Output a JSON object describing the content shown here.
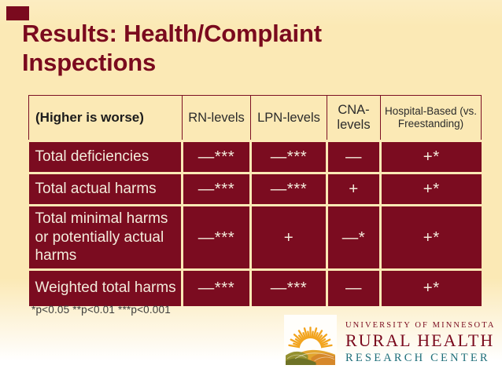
{
  "slide": {
    "title_line1": "Results: Health/Complaint",
    "title_line2": "Inspections",
    "footnote": "*p<0.05 **p<0.01 ***p<0.001"
  },
  "table": {
    "headers": [
      "(Higher is worse)",
      "RN-levels",
      "LPN-levels",
      "CNA-levels",
      "Hospital-Based (vs. Freestanding)"
    ],
    "rows": [
      {
        "label": "Total deficiencies",
        "cells": [
          "—***",
          "—***",
          "—",
          "+*"
        ]
      },
      {
        "label": "Total actual harms",
        "cells": [
          "—***",
          "—***",
          "+",
          "+*"
        ]
      },
      {
        "label": "Total minimal harms or potentially actual harms",
        "cells": [
          "—***",
          "+",
          "—*",
          "+*"
        ]
      },
      {
        "label": "Weighted total harms",
        "cells": [
          "—***",
          "—***",
          "—",
          "+*"
        ]
      }
    ]
  },
  "logo": {
    "university": "UNIVERSITY OF MINNESOTA",
    "center_line1": "RURAL HEALTH",
    "center_line2": "RESEARCH CENTER",
    "icon": "sunrise-fields-icon"
  },
  "colors": {
    "maroon": "#7B0C20",
    "cream_background": "#FBE9B5",
    "title_text": "#7A0A1E",
    "cell_text": "#F3EBDB",
    "teal": "#1F6F7A"
  }
}
